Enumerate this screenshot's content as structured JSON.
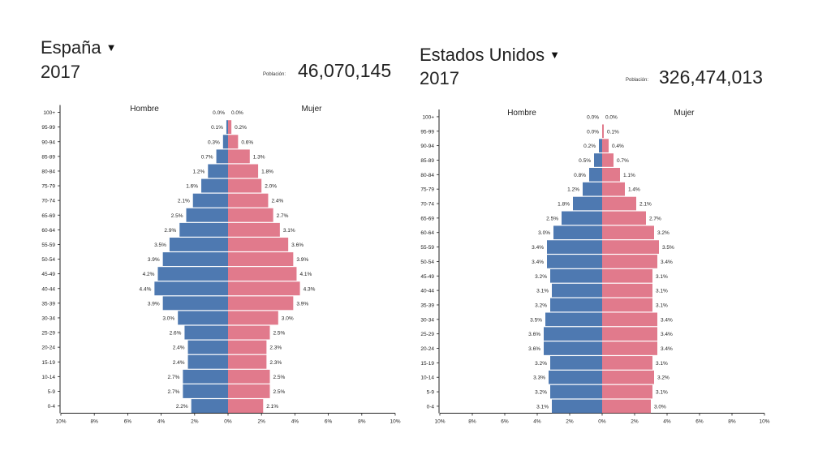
{
  "colors": {
    "male": "#4e79b1",
    "female": "#e17a8c",
    "axis": "#222222"
  },
  "panels": [
    {
      "country": "España",
      "year": "2017",
      "population_label": "Población:",
      "population": "46,070,145"
    },
    {
      "country": "Estados Unidos",
      "year": "2017",
      "population_label": "Población:",
      "population": "326,474,013"
    }
  ],
  "chart_data": [
    {
      "type": "bar",
      "orientation": "horizontal",
      "title": "España 2017",
      "categories": [
        "100+",
        "95-99",
        "90-94",
        "85-89",
        "80-84",
        "75-79",
        "70-74",
        "65-69",
        "60-64",
        "55-59",
        "50-54",
        "45-49",
        "40-44",
        "35-39",
        "30-34",
        "25-29",
        "20-24",
        "15-19",
        "10-14",
        "5-9",
        "0-4"
      ],
      "series": [
        {
          "name": "Hombre",
          "values": [
            0.0,
            0.1,
            0.3,
            0.7,
            1.2,
            1.6,
            2.1,
            2.5,
            2.9,
            3.5,
            3.9,
            4.2,
            4.4,
            3.9,
            3.0,
            2.6,
            2.4,
            2.4,
            2.7,
            2.7,
            2.2
          ],
          "labels": [
            "0.0%",
            "0.1%",
            "0.3%",
            "0.7%",
            "1.2%",
            "1.6%",
            "2.1%",
            "2.5%",
            "2.9%",
            "3.5%",
            "3.9%",
            "4.2%",
            "4.4%",
            "3.9%",
            "3.0%",
            "2.6%",
            "2.4%",
            "2.4%",
            "2.7%",
            "2.7%",
            "2.2%"
          ]
        },
        {
          "name": "Mujer",
          "values": [
            0.0,
            0.2,
            0.6,
            1.3,
            1.8,
            2.0,
            2.4,
            2.7,
            3.1,
            3.6,
            3.9,
            4.1,
            4.3,
            3.9,
            3.0,
            2.5,
            2.3,
            2.3,
            2.5,
            2.5,
            2.1
          ],
          "labels": [
            "0.0%",
            "0.2%",
            "0.6%",
            "1.3%",
            "1.8%",
            "2.0%",
            "2.4%",
            "2.7%",
            "3.1%",
            "3.6%",
            "3.9%",
            "4.1%",
            "4.3%",
            "3.9%",
            "3.0%",
            "2.5%",
            "2.3%",
            "2.3%",
            "2.5%",
            "2.5%",
            "2.1%"
          ]
        }
      ],
      "x_ticks": [
        "10%",
        "8%",
        "6%",
        "4%",
        "2%",
        "0%",
        "2%",
        "4%",
        "6%",
        "8%",
        "10%"
      ],
      "xlim": [
        -10,
        10
      ]
    },
    {
      "type": "bar",
      "orientation": "horizontal",
      "title": "Estados Unidos 2017",
      "categories": [
        "100+",
        "95-99",
        "90-94",
        "85-89",
        "80-84",
        "75-79",
        "70-74",
        "65-69",
        "60-64",
        "55-59",
        "50-54",
        "45-49",
        "40-44",
        "35-39",
        "30-34",
        "25-29",
        "20-24",
        "15-19",
        "10-14",
        "5-9",
        "0-4"
      ],
      "series": [
        {
          "name": "Hombre",
          "values": [
            0.0,
            0.0,
            0.2,
            0.5,
            0.8,
            1.2,
            1.8,
            2.5,
            3.0,
            3.4,
            3.4,
            3.2,
            3.1,
            3.2,
            3.5,
            3.6,
            3.6,
            3.2,
            3.3,
            3.2,
            3.1
          ],
          "labels": [
            "0.0%",
            "0.0%",
            "0.2%",
            "0.5%",
            "0.8%",
            "1.2%",
            "1.8%",
            "2.5%",
            "3.0%",
            "3.4%",
            "3.4%",
            "3.2%",
            "3.1%",
            "3.2%",
            "3.5%",
            "3.6%",
            "3.6%",
            "3.2%",
            "3.3%",
            "3.2%",
            "3.1%"
          ]
        },
        {
          "name": "Mujer",
          "values": [
            0.0,
            0.1,
            0.4,
            0.7,
            1.1,
            1.4,
            2.1,
            2.7,
            3.2,
            3.5,
            3.4,
            3.1,
            3.1,
            3.1,
            3.4,
            3.4,
            3.4,
            3.1,
            3.2,
            3.1,
            3.0
          ],
          "labels": [
            "0.0%",
            "0.1%",
            "0.4%",
            "0.7%",
            "1.1%",
            "1.4%",
            "2.1%",
            "2.7%",
            "3.2%",
            "3.5%",
            "3.4%",
            "3.1%",
            "3.1%",
            "3.1%",
            "3.4%",
            "3.4%",
            "3.4%",
            "3.1%",
            "3.2%",
            "3.1%",
            "3.0%"
          ]
        }
      ],
      "x_ticks": [
        "10%",
        "8%",
        "6%",
        "4%",
        "2%",
        "0%",
        "2%",
        "4%",
        "6%",
        "8%",
        "10%"
      ],
      "xlim": [
        -10,
        10
      ]
    }
  ]
}
